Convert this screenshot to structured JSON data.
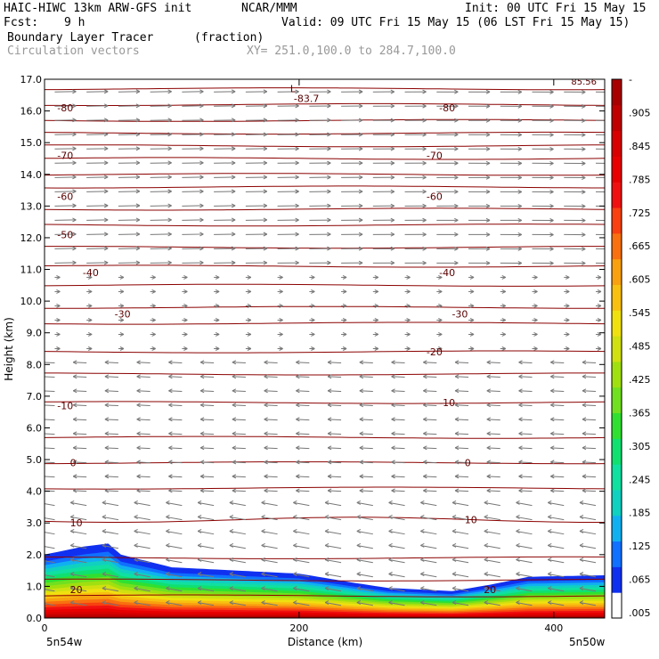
{
  "header": {
    "model": "HAIC-HIWC 13km ARW-GFS init",
    "org": "NCAR/MMM",
    "init": "Init: 00 UTC Fri 15 May 15",
    "fcst_label": "Fcst:",
    "fcst_value": "9 h",
    "valid": "Valid: 09 UTC Fri 15 May 15 (06 LST Fri 15 May 15)",
    "field1": "Boundary Layer Tracer",
    "field1_units": "(fraction)",
    "field2": "Circulation vectors",
    "xsec": "XY= 251.0,100.0 to 284.7,100.0"
  },
  "chart_data": {
    "type": "heatmap",
    "xlabel": "Distance (km)",
    "ylabel": "Height (km)",
    "xlim": [
      0,
      440
    ],
    "ylim": [
      0,
      17
    ],
    "x_ticks": [
      0,
      200,
      400
    ],
    "y_ticks": [
      "0.0",
      "1.0",
      "2.0",
      "3.0",
      "4.0",
      "5.0",
      "6.0",
      "7.0",
      "8.0",
      "9.0",
      "10.0",
      "11.0",
      "12.0",
      "13.0",
      "14.0",
      "15.0",
      "16.0",
      "17.0"
    ],
    "x_end_labels": {
      "left": "5n54w",
      "right": "5n50w"
    },
    "colorbar": {
      "labels": [
        ".005",
        ".065",
        ".125",
        ".185",
        ".245",
        ".305",
        ".365",
        ".425",
        ".485",
        ".545",
        ".605",
        ".665",
        ".725",
        ".785",
        ".845",
        ".905",
        "-"
      ],
      "colors": [
        "#ffffff",
        "#1030f0",
        "#1070ff",
        "#10b0f0",
        "#10d0c0",
        "#10e0a0",
        "#10e070",
        "#30e030",
        "#70e020",
        "#a0e010",
        "#d0e010",
        "#f0e010",
        "#f8c010",
        "#f8a010",
        "#f87010",
        "#f84010",
        "#f01010",
        "#e80000",
        "#d80000",
        "#c00000",
        "#a80000"
      ]
    },
    "contour_lines_heights_km": [
      0.7,
      1.2,
      1.9,
      3.1,
      4.1,
      4.9,
      5.7,
      6.8,
      7.7,
      8.4,
      9.3,
      9.8,
      10.5,
      11.1,
      11.7,
      12.4,
      12.9,
      13.6,
      14.0,
      14.5,
      14.9,
      15.3,
      15.7,
      16.2,
      16.7
    ],
    "contour_labels": [
      {
        "text": "-80",
        "x": 10,
        "y": 16.1
      },
      {
        "text": "-80",
        "x": 310,
        "y": 16.1
      },
      {
        "text": "-70",
        "x": 10,
        "y": 14.6
      },
      {
        "text": "-70",
        "x": 300,
        "y": 14.6
      },
      {
        "text": "-60",
        "x": 10,
        "y": 13.3
      },
      {
        "text": "-60",
        "x": 300,
        "y": 13.3
      },
      {
        "text": "-50",
        "x": 10,
        "y": 12.1
      },
      {
        "text": "-40",
        "x": 30,
        "y": 10.9
      },
      {
        "text": "-40",
        "x": 310,
        "y": 10.9
      },
      {
        "text": "-30",
        "x": 55,
        "y": 9.6
      },
      {
        "text": "-30",
        "x": 320,
        "y": 9.6
      },
      {
        "text": "-20",
        "x": 300,
        "y": 8.4
      },
      {
        "text": "-10",
        "x": 10,
        "y": 6.7
      },
      {
        "text": "-10",
        "x": 310,
        "y": 6.8
      },
      {
        "text": "0",
        "x": 20,
        "y": 4.9
      },
      {
        "text": "0",
        "x": 330,
        "y": 4.9
      },
      {
        "text": "10",
        "x": 20,
        "y": 3.0
      },
      {
        "text": "10",
        "x": 330,
        "y": 3.1
      },
      {
        "text": "20",
        "x": 20,
        "y": 0.9
      },
      {
        "text": "20",
        "x": 345,
        "y": 0.9
      }
    ],
    "low_marker": {
      "symbol": "L",
      "value": "-83.7",
      "x": 200,
      "y": 16.7
    },
    "corner_value": "85.56",
    "boundary_layer_top_km": [
      {
        "x": 0,
        "top": 2.0
      },
      {
        "x": 30,
        "top": 2.25
      },
      {
        "x": 50,
        "top": 2.35
      },
      {
        "x": 60,
        "top": 2.0
      },
      {
        "x": 100,
        "top": 1.6
      },
      {
        "x": 200,
        "top": 1.4
      },
      {
        "x": 245,
        "top": 1.1
      },
      {
        "x": 270,
        "top": 0.95
      },
      {
        "x": 320,
        "top": 0.85
      },
      {
        "x": 350,
        "top": 1.05
      },
      {
        "x": 380,
        "top": 1.3
      },
      {
        "x": 440,
        "top": 1.35
      }
    ]
  }
}
